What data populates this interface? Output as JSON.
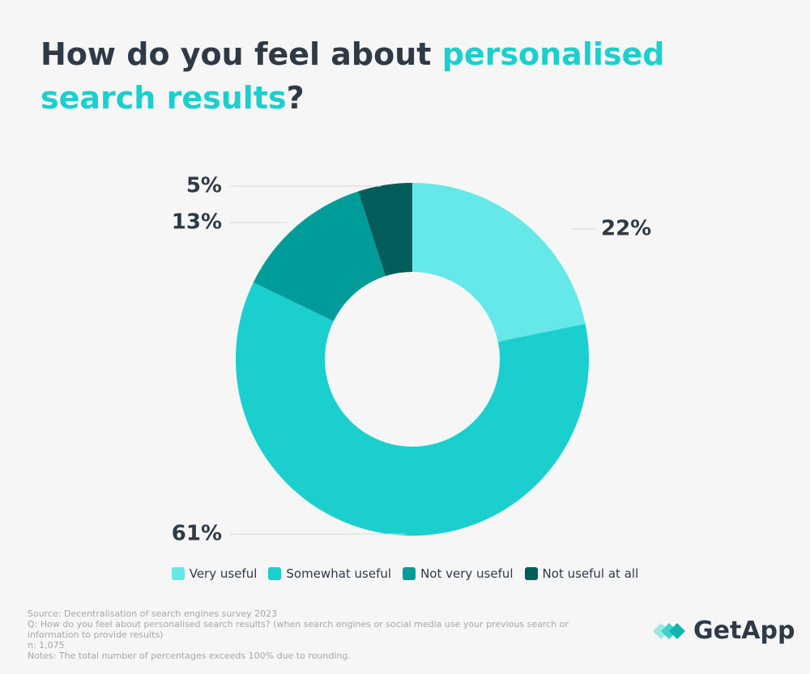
{
  "chart_data": {
    "type": "donut",
    "title_parts": [
      "How do you feel about",
      "personalised search results",
      "?"
    ],
    "categories": [
      "Very useful",
      "Somewhat useful",
      "Not very useful",
      "Not useful at all"
    ],
    "values": [
      22,
      61,
      13,
      5
    ],
    "value_labels": [
      "22%",
      "61%",
      "13%",
      "5%"
    ],
    "colors": [
      "#64e8e8",
      "#1ccfcf",
      "#009c9a",
      "#035e5a"
    ],
    "footnotes": [
      "Source: Decentralisation of search engines survey 2023",
      "Q: How do you feel about personalised search results? (when search engines or social media use your previous search or information to provide results)",
      "n: 1,075",
      "Notes: The total number of percentages exceeds 100% due to rounding."
    ],
    "brand": "GetApp"
  }
}
